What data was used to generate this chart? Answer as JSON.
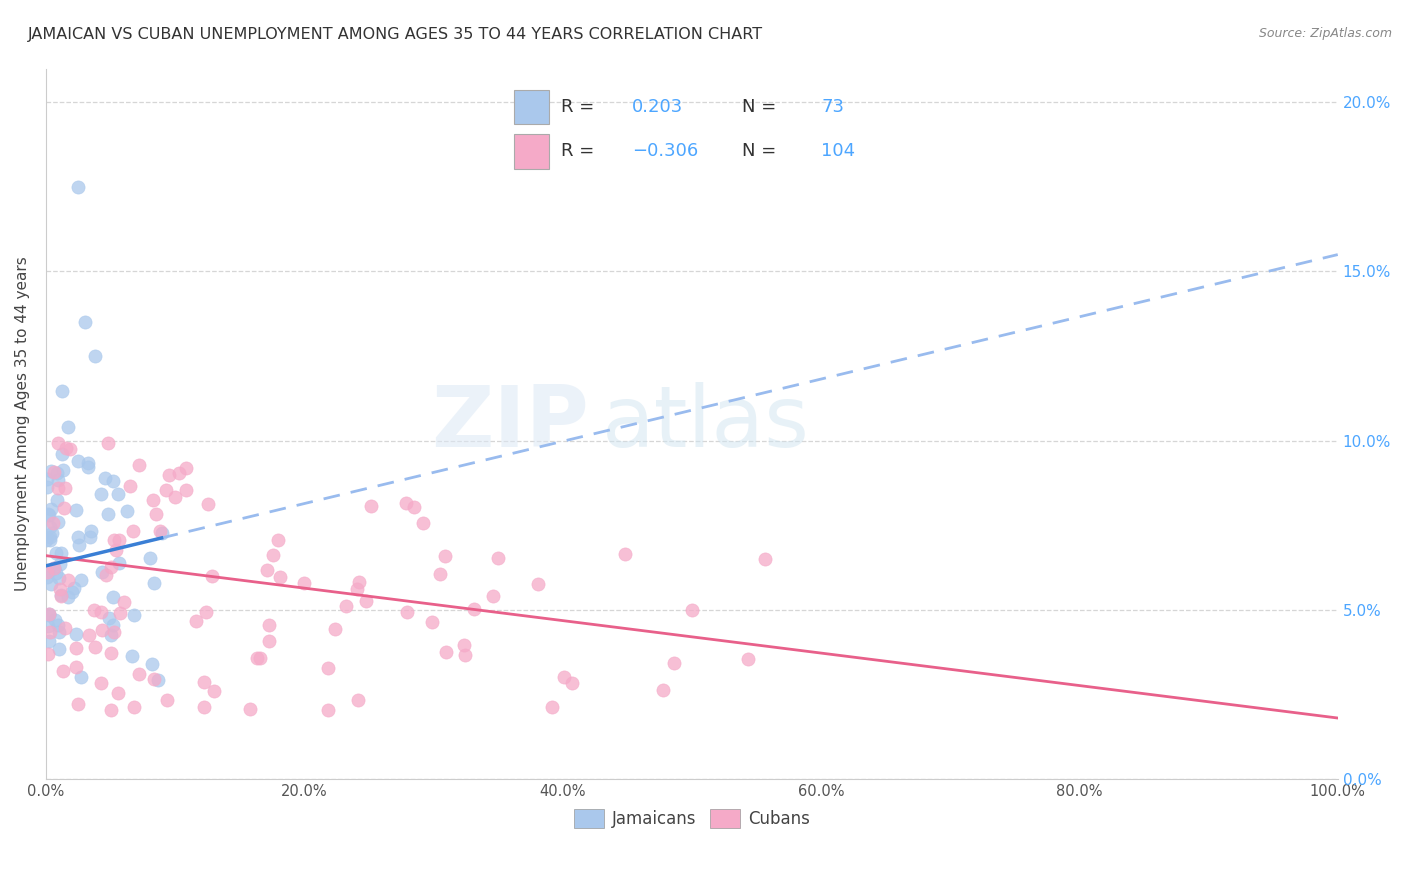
{
  "title": "JAMAICAN VS CUBAN UNEMPLOYMENT AMONG AGES 35 TO 44 YEARS CORRELATION CHART",
  "source": "Source: ZipAtlas.com",
  "ylabel": "Unemployment Among Ages 35 to 44 years",
  "xlim": [
    0.0,
    1.0
  ],
  "ylim": [
    0.0,
    0.21
  ],
  "jamaican_R": 0.203,
  "jamaican_N": 73,
  "cuban_R": -0.306,
  "cuban_N": 104,
  "legend_label_jamaicans": "Jamaicans",
  "legend_label_cubans": "Cubans",
  "watermark_line1": "ZIP",
  "watermark_line2": "atlas",
  "background_color": "#ffffff",
  "grid_color": "#cccccc",
  "title_color": "#333333",
  "axis_label_color": "#444444",
  "tick_color_x": "#555555",
  "tick_color_right": "#4da6ff",
  "jamaican_line_color": "#3a7fd5",
  "jamaican_dashed_color": "#99bbee",
  "cuban_line_color": "#e8608a",
  "jamaican_scatter_color": "#aac8ec",
  "cuban_scatter_color": "#f5aac8",
  "legend_text_color": "#333333",
  "legend_value_color": "#4da6ff",
  "source_color": "#888888"
}
